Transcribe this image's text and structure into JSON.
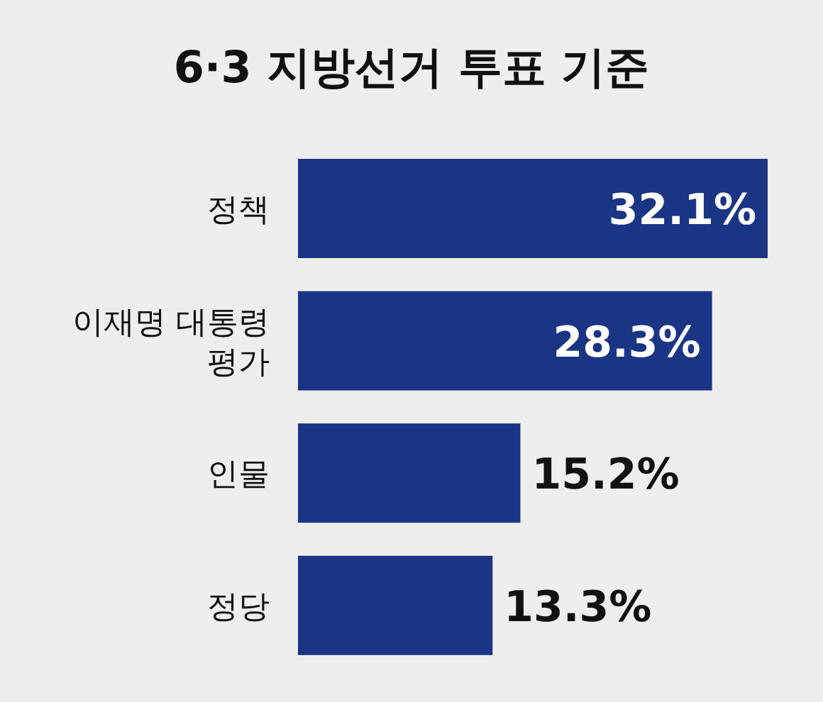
{
  "chart_data": {
    "type": "bar",
    "orientation": "horizontal",
    "title": "6·3 지방선거 투표 기준",
    "categories": [
      "정책",
      "이재명 대통령 평가",
      "인물",
      "정당"
    ],
    "values": [
      32.1,
      28.3,
      15.2,
      13.3
    ],
    "value_labels": [
      "32.1%",
      "28.3%",
      "15.2%",
      "13.3%"
    ],
    "color": "#1b3585"
  }
}
